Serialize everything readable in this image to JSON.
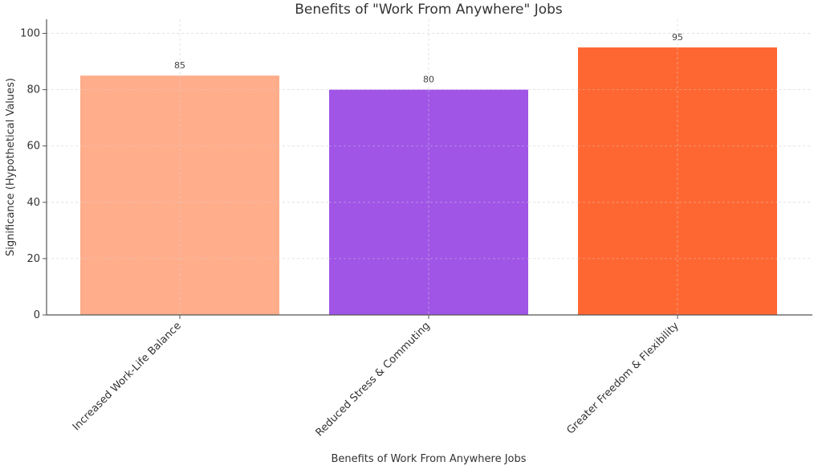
{
  "chart_data": {
    "type": "bar",
    "title": "Benefits of \"Work From Anywhere\" Jobs",
    "xlabel": "Benefits of Work From Anywhere Jobs",
    "ylabel": "Significance (Hypothetical Values)",
    "categories": [
      "Increased Work-Life Balance",
      "Reduced Stress & Commuting",
      "Greater Freedom & Flexibility"
    ],
    "values": [
      85,
      80,
      95
    ],
    "data_labels": [
      "85",
      "80",
      "95"
    ],
    "colors": [
      "#FFAD8A",
      "#A155E6",
      "#FF6732"
    ],
    "ylim": [
      0,
      105
    ],
    "yticks": [
      0,
      20,
      40,
      60,
      80,
      100
    ],
    "grid": true,
    "legend": "none"
  }
}
